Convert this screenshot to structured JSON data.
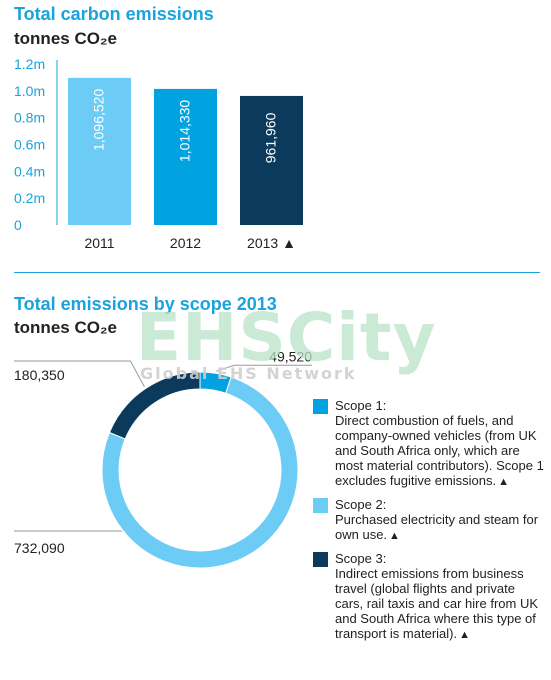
{
  "charts": {
    "bar": {
      "title": "Total carbon emissions",
      "subtitle": "tonnes CO₂e"
    },
    "donut": {
      "title": "Total emissions by scope 2013",
      "subtitle": "tonnes CO₂e"
    }
  },
  "colors": {
    "light_blue": "#6cccf5",
    "mid_blue": "#00a3e0",
    "dark_navy": "#0b3a5c",
    "accent": "#1aa3dc",
    "axis_text": "#1aa3dc"
  },
  "watermark": {
    "brand": "EHSCity",
    "tagline": "Global EHS Network"
  },
  "legend": [
    {
      "title": "Scope 1:",
      "description": "Direct combustion of fuels, and company-owned vehicles (from UK and South Africa only, which are most material contributors). Scope 1 excludes fugitive emissions.",
      "marker": "▲",
      "color": "#00a3e0"
    },
    {
      "title": "Scope 2:",
      "description": "Purchased electricity and steam for own use.",
      "marker": "▲",
      "color": "#6cccf5"
    },
    {
      "title": "Scope 3:",
      "description": "Indirect emissions from business travel (global flights and private cars, rail taxis and car hire from UK and South Africa where this type of transport is material).",
      "marker": "▲",
      "color": "#0b3a5c"
    }
  ],
  "chart_data": [
    {
      "type": "bar",
      "title": "Total carbon emissions",
      "subtitle": "tonnes CO₂e",
      "categories": [
        "2011",
        "2012",
        "2013 ▲"
      ],
      "values": [
        1096520,
        1014330,
        961960
      ],
      "value_labels": [
        "1,096,520",
        "1,014,330",
        "961,960"
      ],
      "colors": [
        "#6cccf5",
        "#00a3e0",
        "#0b3a5c"
      ],
      "y_ticks": [
        0,
        200000,
        400000,
        600000,
        800000,
        1000000,
        1200000
      ],
      "y_tick_labels": [
        "0",
        "0.2m",
        "0.4m",
        "0.6m",
        "0.8m",
        "1.0m",
        "1.2m"
      ],
      "ylim": [
        0,
        1200000
      ],
      "grid": false
    },
    {
      "type": "pie",
      "donut": true,
      "title": "Total emissions by scope 2013",
      "subtitle": "tonnes CO₂e",
      "slices": [
        {
          "name": "Scope 1",
          "value": 49520,
          "label": "49,520",
          "color": "#00a3e0"
        },
        {
          "name": "Scope 2",
          "value": 732090,
          "label": "732,090",
          "color": "#6cccf5"
        },
        {
          "name": "Scope 3",
          "value": 180350,
          "label": "180,350",
          "color": "#0b3a5c"
        }
      ]
    }
  ]
}
